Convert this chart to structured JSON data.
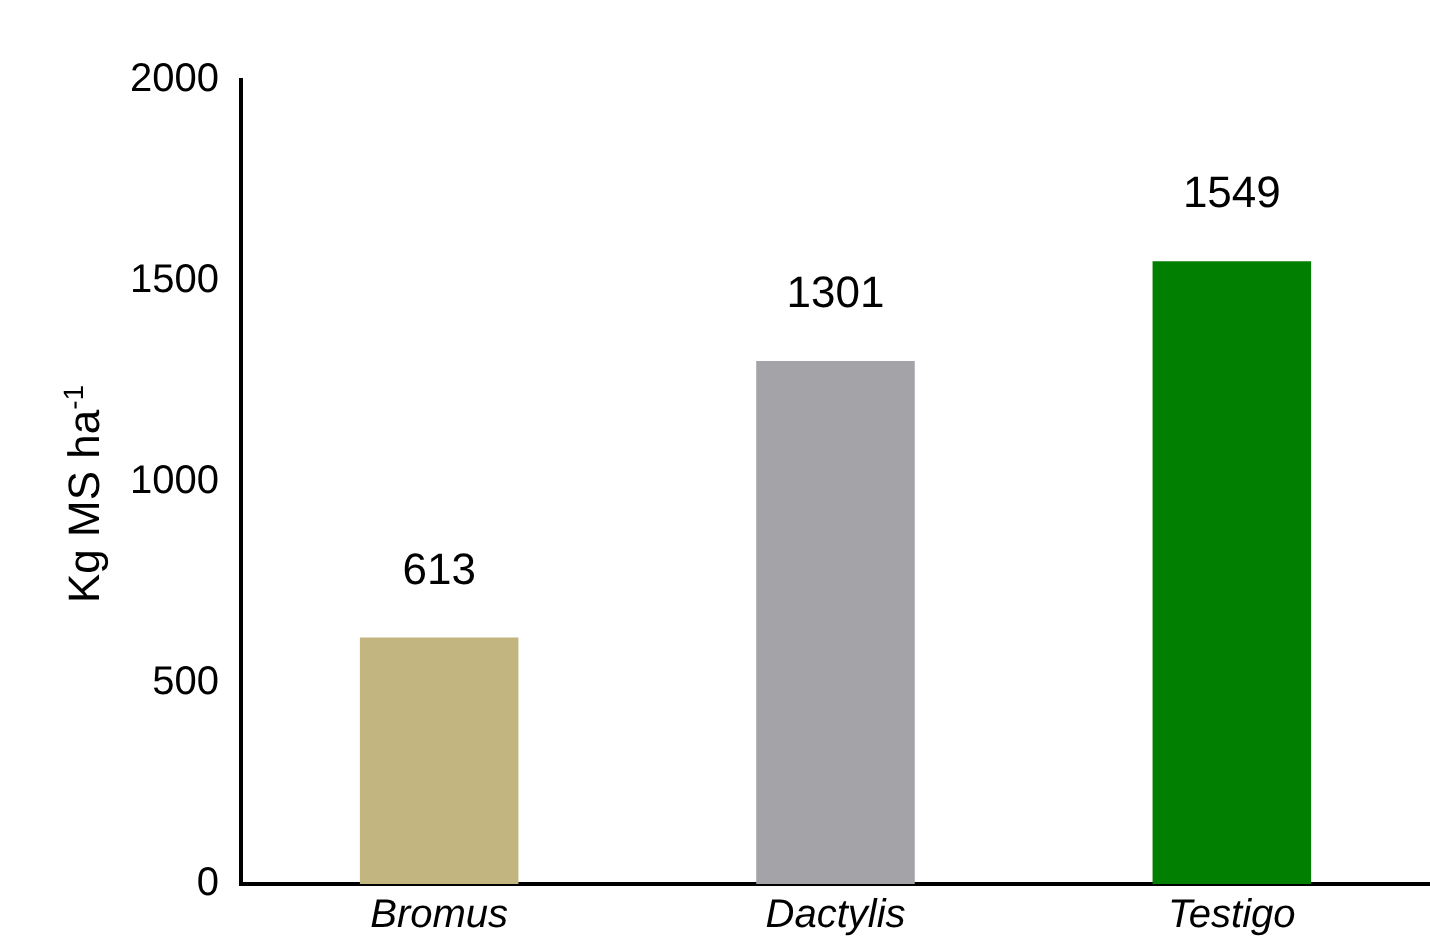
{
  "chart_data": {
    "type": "bar",
    "ylabel": "Kg MS ha$^{-1}$",
    "categories": [
      "Bromus",
      "Dactylis",
      "Testigo"
    ],
    "values": [
      613,
      1301,
      1549
    ],
    "colors": [
      "#c2b580",
      "#a3a3a8",
      "#007f00"
    ],
    "ylim": [
      0,
      2000
    ],
    "yticks": [
      0,
      500,
      1000,
      1500,
      2000
    ],
    "grid": false,
    "legend": false,
    "data_labels": true
  }
}
